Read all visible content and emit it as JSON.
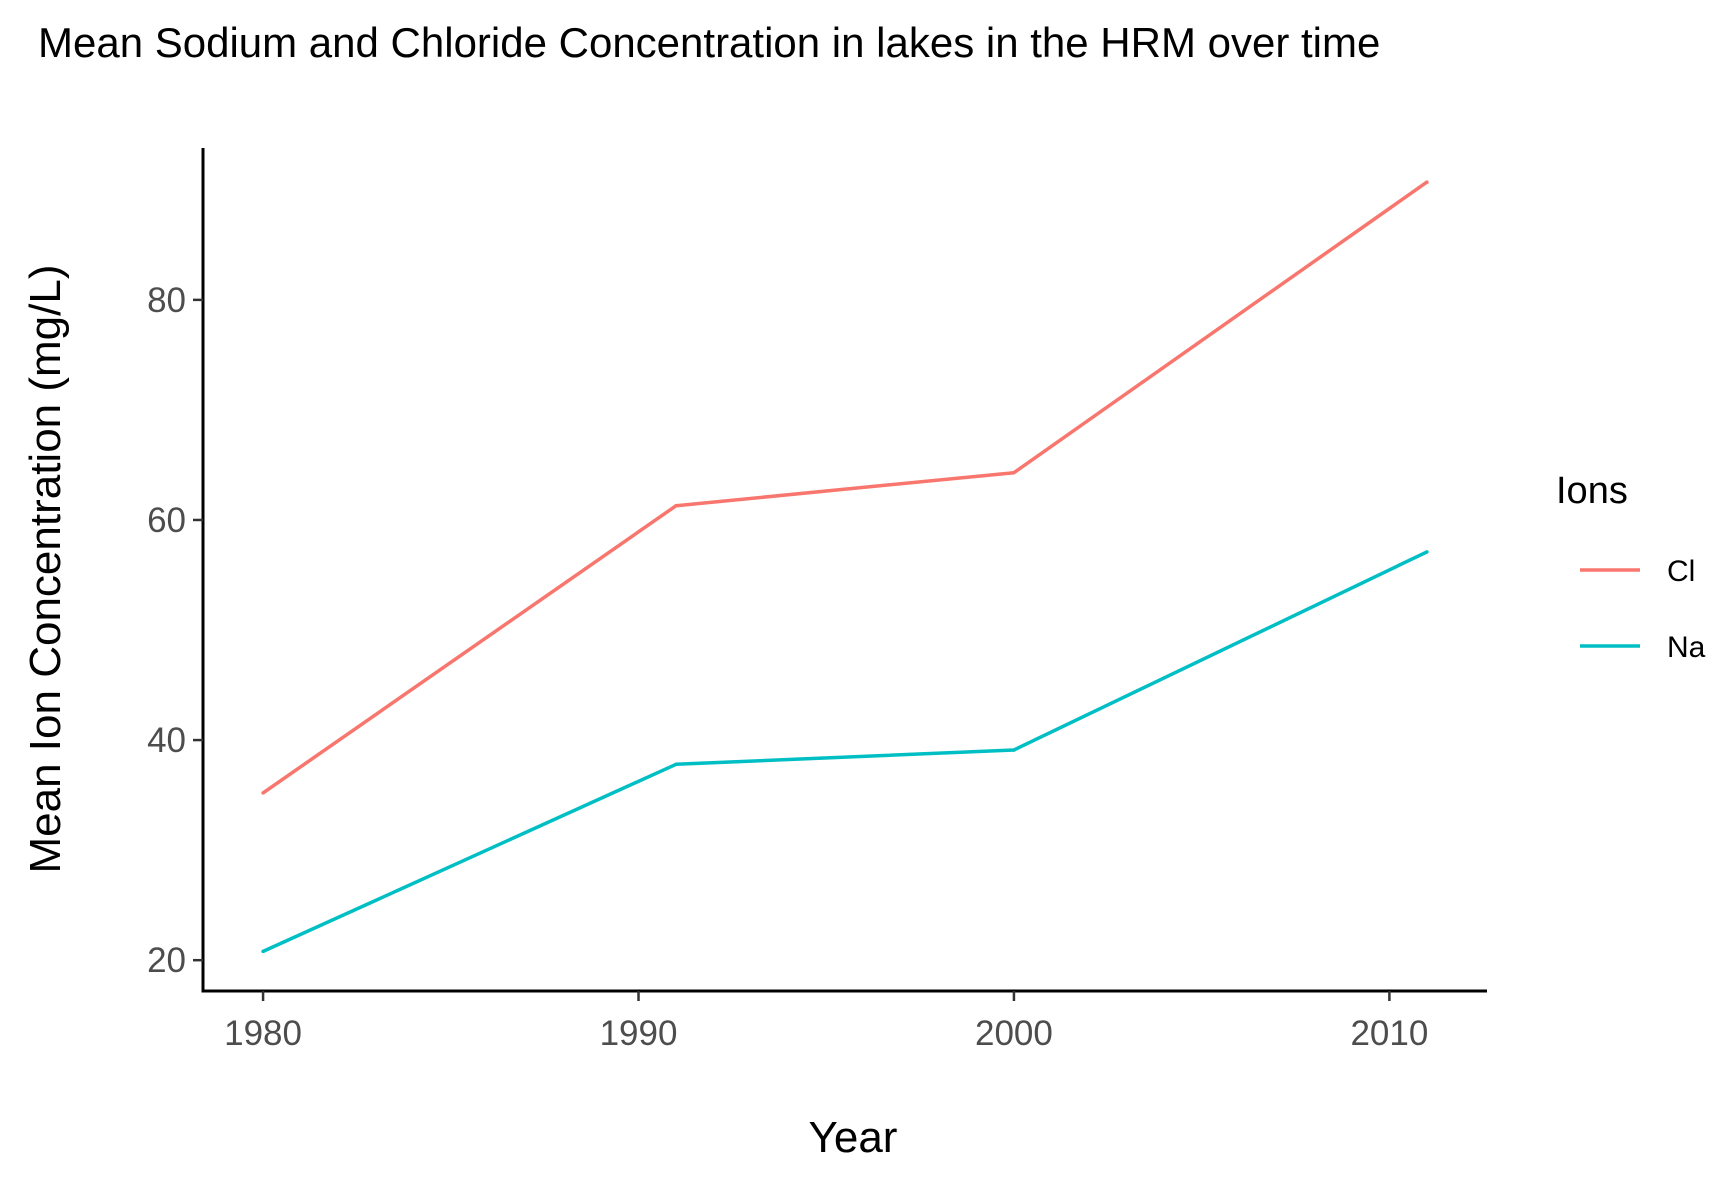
{
  "chart_data": {
    "type": "line",
    "title": "Mean Sodium and Chloride Concentration in lakes in the HRM over time",
    "xlabel": "Year",
    "ylabel": "Mean Ion Concentration (mg/L)",
    "x": [
      1980,
      1991,
      2000,
      2011
    ],
    "xlim": [
      1978.4,
      2012.6
    ],
    "ylim": [
      17.2,
      93.8
    ],
    "xticks": [
      1980,
      1990,
      2000,
      2010
    ],
    "yticks": [
      20,
      40,
      60,
      80
    ],
    "grid": false,
    "legend": {
      "title": "Ions",
      "position": "right"
    },
    "series": [
      {
        "name": "Cl",
        "color": "#F8766D",
        "values": [
          35.2,
          61.3,
          64.3,
          90.7
        ]
      },
      {
        "name": "Na",
        "color": "#00BFC4",
        "values": [
          20.8,
          37.8,
          39.1,
          57.1
        ]
      }
    ]
  }
}
